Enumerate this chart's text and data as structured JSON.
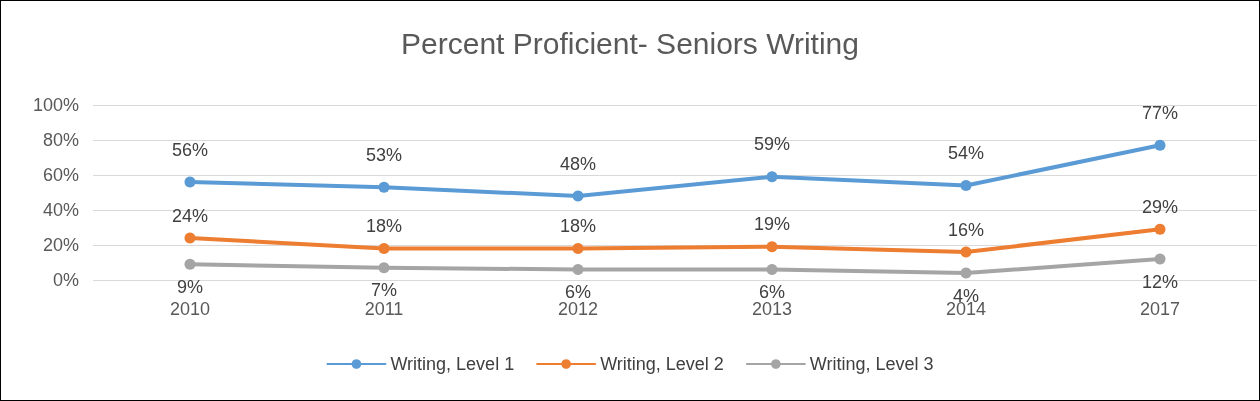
{
  "chart_data": {
    "type": "line",
    "title": "Percent Proficient- Seniors Writing",
    "categories": [
      "2010",
      "2011",
      "2012",
      "2013",
      "2014",
      "2017"
    ],
    "series": [
      {
        "name": "Writing, Level 1",
        "color": "#5b9bd5",
        "values": [
          56,
          53,
          48,
          59,
          54,
          77
        ],
        "value_labels": [
          "56%",
          "53%",
          "48%",
          "59%",
          "54%",
          "77%"
        ]
      },
      {
        "name": "Writing, Level 2",
        "color": "#ed7d31",
        "values": [
          24,
          18,
          18,
          19,
          16,
          29
        ],
        "value_labels": [
          "24%",
          "18%",
          "18%",
          "19%",
          "16%",
          "29%"
        ]
      },
      {
        "name": "Writing, Level 3",
        "color": "#a5a5a5",
        "values": [
          9,
          7,
          6,
          6,
          4,
          12
        ],
        "value_labels": [
          "9%",
          "7%",
          "6%",
          "6%",
          "4%",
          "12%"
        ]
      }
    ],
    "ylim": [
      0,
      100
    ],
    "yticks": [
      {
        "value": 0,
        "label": "0%"
      },
      {
        "value": 20,
        "label": "20%"
      },
      {
        "value": 40,
        "label": "40%"
      },
      {
        "value": 60,
        "label": "60%"
      },
      {
        "value": 80,
        "label": "80%"
      },
      {
        "value": 100,
        "label": "100%"
      }
    ],
    "grid": "y",
    "legend": "bottom",
    "marker": "circle",
    "line_style": "solid"
  }
}
